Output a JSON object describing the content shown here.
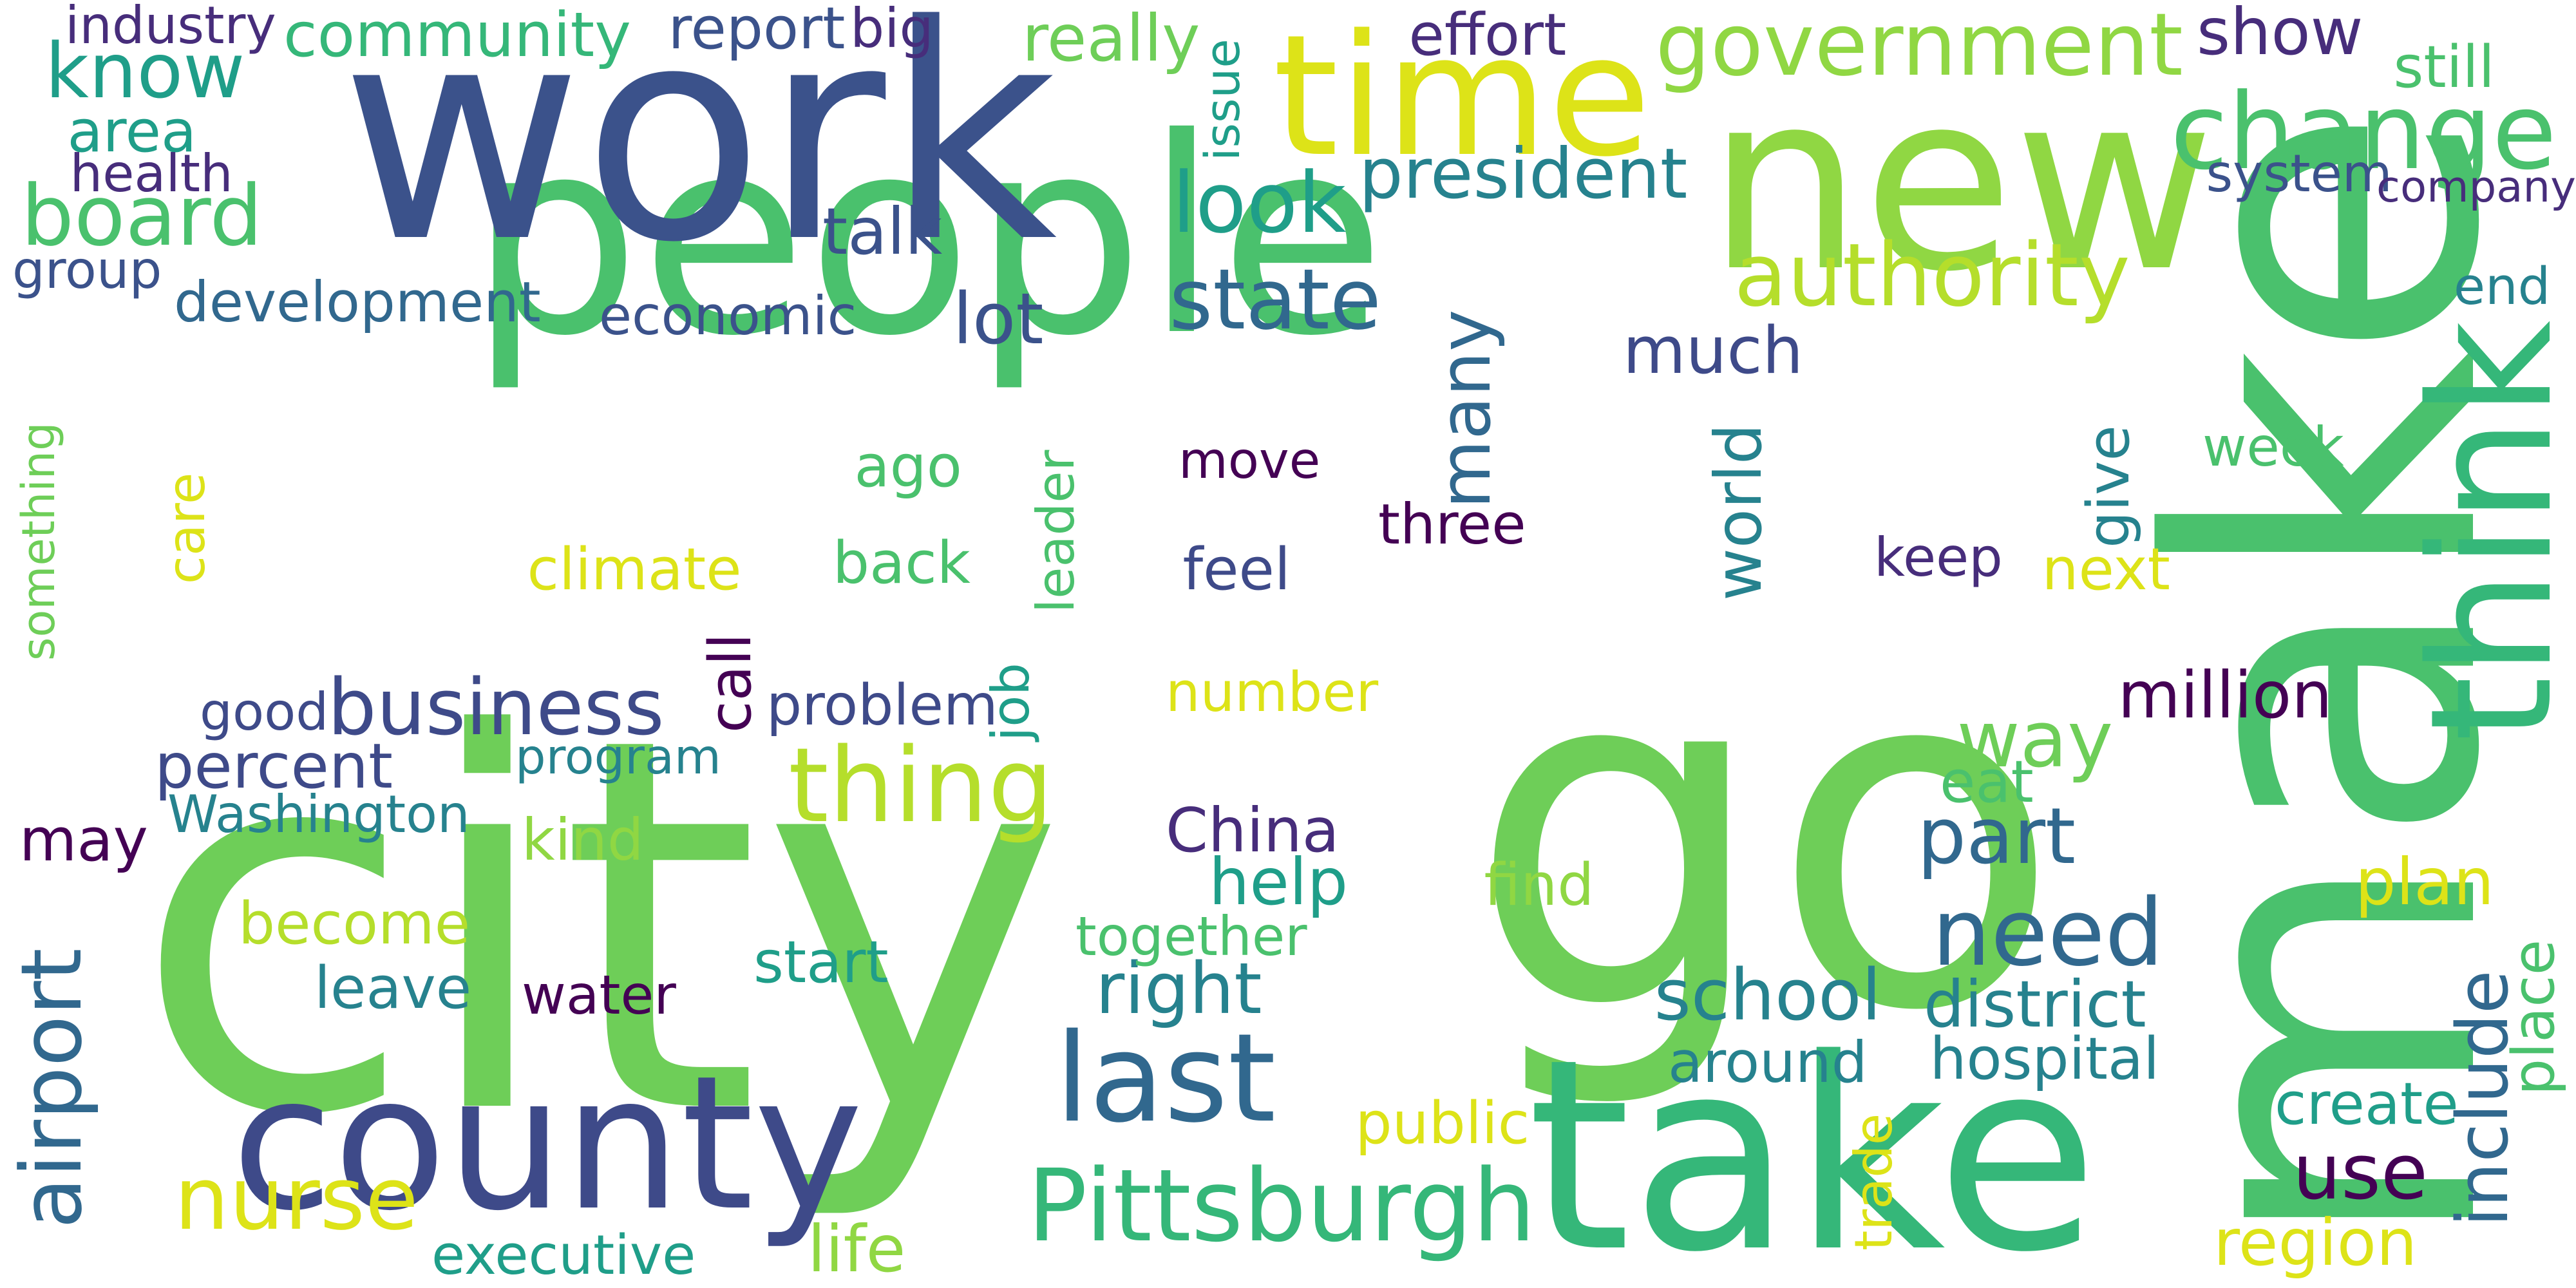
{
  "palette": {
    "navy": "#3b528b",
    "indigo": "#3e4a89",
    "darkpurple": "#440154",
    "purple": "#472d7b",
    "slate": "#31688e",
    "teal": "#26828e",
    "tealgreen": "#1f9e89",
    "seagreen": "#35b779",
    "green": "#4ac16d",
    "lightgreen": "#6ece58",
    "lime": "#90d743",
    "yellowgreen": "#b5de2b",
    "yellow": "#dde318"
  },
  "words": [
    {
      "text": "people",
      "color": "#4ac16d"
    },
    {
      "text": "work",
      "color": "#3b528b"
    },
    {
      "text": "go",
      "color": "#6ece58"
    },
    {
      "text": "make",
      "color": "#4ac16d"
    },
    {
      "text": "city",
      "color": "#6ece58"
    },
    {
      "text": "take",
      "color": "#35b779"
    },
    {
      "text": "time",
      "color": "#dde318"
    },
    {
      "text": "new",
      "color": "#90d743"
    },
    {
      "text": "county",
      "color": "#3e4a89"
    },
    {
      "text": "think",
      "color": "#35b779"
    },
    {
      "text": "Pittsburgh",
      "color": "#35b779"
    },
    {
      "text": "last",
      "color": "#31688e"
    },
    {
      "text": "change",
      "color": "#4ac16d"
    },
    {
      "text": "government",
      "color": "#90d743"
    },
    {
      "text": "authority",
      "color": "#b5de2b"
    },
    {
      "text": "thing",
      "color": "#b5de2b"
    },
    {
      "text": "need",
      "color": "#31688e"
    },
    {
      "text": "airport",
      "color": "#31688e"
    },
    {
      "text": "nurse",
      "color": "#dde318"
    },
    {
      "text": "business",
      "color": "#3e4a89"
    },
    {
      "text": "include",
      "color": "#31688e"
    },
    {
      "text": "board",
      "color": "#4ac16d"
    },
    {
      "text": "know",
      "color": "#1f9e89"
    },
    {
      "text": "look",
      "color": "#1f9e89"
    },
    {
      "text": "state",
      "color": "#31688e"
    },
    {
      "text": "president",
      "color": "#26828e"
    },
    {
      "text": "community",
      "color": "#35b779"
    },
    {
      "text": "world",
      "color": "#26828e"
    },
    {
      "text": "many",
      "color": "#31688e"
    },
    {
      "text": "part",
      "color": "#31688e"
    },
    {
      "text": "way",
      "color": "#6ece58"
    },
    {
      "text": "use",
      "color": "#440154"
    },
    {
      "text": "school",
      "color": "#26828e"
    },
    {
      "text": "become",
      "color": "#b5de2b"
    },
    {
      "text": "right",
      "color": "#26828e"
    },
    {
      "text": "much",
      "color": "#3e4a89"
    },
    {
      "text": "development",
      "color": "#31688e"
    },
    {
      "text": "economic",
      "color": "#3b528b"
    },
    {
      "text": "executive",
      "color": "#1f9e89"
    },
    {
      "text": "district",
      "color": "#26828e"
    },
    {
      "text": "around",
      "color": "#26828e"
    },
    {
      "text": "show",
      "color": "#472d7b"
    },
    {
      "text": "report",
      "color": "#3b528b"
    },
    {
      "text": "industry",
      "color": "#472d7b"
    },
    {
      "text": "big",
      "color": "#472d7b"
    },
    {
      "text": "really",
      "color": "#6ece58"
    },
    {
      "text": "effort",
      "color": "#472d7b"
    },
    {
      "text": "still",
      "color": "#4ac16d"
    },
    {
      "text": "area",
      "color": "#1f9e89"
    },
    {
      "text": "health",
      "color": "#472d7b"
    },
    {
      "text": "issue",
      "color": "#1f9e89"
    },
    {
      "text": "system",
      "color": "#3b528b"
    },
    {
      "text": "company",
      "color": "#472d7b"
    },
    {
      "text": "group",
      "color": "#3b528b"
    },
    {
      "text": "talk",
      "color": "#3b528b"
    },
    {
      "text": "lot",
      "color": "#3b528b"
    },
    {
      "text": "end",
      "color": "#26828e"
    },
    {
      "text": "something",
      "color": "#6ece58"
    },
    {
      "text": "care",
      "color": "#dde318"
    },
    {
      "text": "climate",
      "color": "#dde318"
    },
    {
      "text": "ago",
      "color": "#4ac16d"
    },
    {
      "text": "back",
      "color": "#4ac16d"
    },
    {
      "text": "leader",
      "color": "#4ac16d"
    },
    {
      "text": "move",
      "color": "#440154"
    },
    {
      "text": "feel",
      "color": "#3e4a89"
    },
    {
      "text": "three",
      "color": "#440154"
    },
    {
      "text": "keep",
      "color": "#472d7b"
    },
    {
      "text": "give",
      "color": "#26828e"
    },
    {
      "text": "next",
      "color": "#dde318"
    },
    {
      "text": "week",
      "color": "#4ac16d"
    },
    {
      "text": "good",
      "color": "#3e4a89"
    },
    {
      "text": "call",
      "color": "#440154"
    },
    {
      "text": "problem",
      "color": "#3e4a89"
    },
    {
      "text": "job",
      "color": "#1f9e89"
    },
    {
      "text": "number",
      "color": "#dde318"
    },
    {
      "text": "million",
      "color": "#440154"
    },
    {
      "text": "percent",
      "color": "#3e4a89"
    },
    {
      "text": "program",
      "color": "#26828e"
    },
    {
      "text": "Washington",
      "color": "#26828e"
    },
    {
      "text": "eat",
      "color": "#4ac16d"
    },
    {
      "text": "may",
      "color": "#440154"
    },
    {
      "text": "kind",
      "color": "#90d743"
    },
    {
      "text": "China",
      "color": "#472d7b"
    },
    {
      "text": "help",
      "color": "#1f9e89"
    },
    {
      "text": "find",
      "color": "#90d743"
    },
    {
      "text": "plan",
      "color": "#dde318"
    },
    {
      "text": "together",
      "color": "#4ac16d"
    },
    {
      "text": "start",
      "color": "#1f9e89"
    },
    {
      "text": "leave",
      "color": "#26828e"
    },
    {
      "text": "water",
      "color": "#440154"
    },
    {
      "text": "place",
      "color": "#4ac16d"
    },
    {
      "text": "hospital",
      "color": "#26828e"
    },
    {
      "text": "public",
      "color": "#dde318"
    },
    {
      "text": "create",
      "color": "#1f9e89"
    },
    {
      "text": "trade",
      "color": "#dde318"
    },
    {
      "text": "life",
      "color": "#90d743"
    },
    {
      "text": "region",
      "color": "#dde318"
    }
  ]
}
